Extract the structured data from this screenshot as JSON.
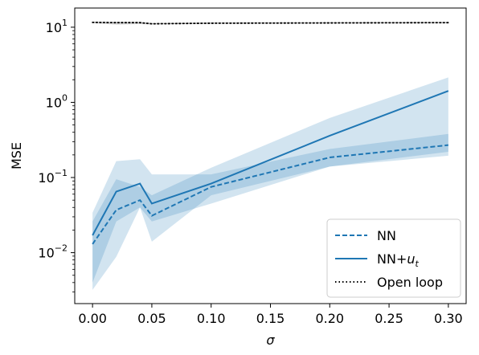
{
  "chart_data": {
    "type": "line",
    "title": "",
    "xlabel": "σ",
    "ylabel": "MSE",
    "yscale": "log",
    "xlim": [
      -0.015,
      0.315
    ],
    "ylim": [
      0.0021,
      18
    ],
    "grid": false,
    "legend_position": "lower-right",
    "x_ticks": [
      0.0,
      0.05,
      0.1,
      0.15,
      0.2,
      0.25,
      0.3
    ],
    "x_tick_labels": [
      "0.00",
      "0.05",
      "0.10",
      "0.15",
      "0.20",
      "0.25",
      "0.30"
    ],
    "y_ticks": [
      0.01,
      0.1,
      1,
      10
    ],
    "y_tick_labels": [
      {
        "base": "10",
        "exp": "−2"
      },
      {
        "base": "10",
        "exp": "−1"
      },
      {
        "base": "10",
        "exp": "0"
      },
      {
        "base": "10",
        "exp": "1"
      }
    ],
    "colors": {
      "blue": "#1f77b4",
      "black": "#000000",
      "band": "#1f77b4"
    },
    "series": [
      {
        "name": "NN",
        "style": "dashed",
        "color": "#1f77b4",
        "x": [
          0.0,
          0.02,
          0.04,
          0.05,
          0.1,
          0.2,
          0.3
        ],
        "values": [
          0.013,
          0.037,
          0.05,
          0.031,
          0.075,
          0.185,
          0.27
        ],
        "lower": [
          0.004,
          0.026,
          0.04,
          0.014,
          0.058,
          0.14,
          0.195
        ],
        "upper": [
          0.034,
          0.165,
          0.175,
          0.11,
          0.11,
          0.24,
          0.38
        ]
      },
      {
        "name": "NN+",
        "name_sub": "t",
        "name_sub_base": "u",
        "style": "solid",
        "color": "#1f77b4",
        "x": [
          0.0,
          0.02,
          0.04,
          0.05,
          0.1,
          0.2,
          0.3
        ],
        "values": [
          0.017,
          0.065,
          0.083,
          0.045,
          0.083,
          0.36,
          1.42
        ],
        "lower": [
          0.0032,
          0.0088,
          0.04,
          0.026,
          0.045,
          0.14,
          0.22
        ],
        "upper": [
          0.026,
          0.095,
          0.075,
          0.058,
          0.135,
          0.62,
          2.15
        ]
      },
      {
        "name": "Open loop",
        "style": "dotted",
        "color": "#000000",
        "x": [
          0.0,
          0.02,
          0.04,
          0.05,
          0.1,
          0.2,
          0.3
        ],
        "values": [
          11.6,
          11.5,
          11.5,
          11.1,
          11.3,
          11.4,
          11.5
        ],
        "lower": [
          11.3,
          10.8,
          11.0,
          10.9,
          11.1,
          11.2,
          11.3
        ],
        "upper": [
          11.9,
          11.8,
          11.8,
          11.4,
          11.6,
          11.7,
          11.8
        ]
      }
    ]
  }
}
